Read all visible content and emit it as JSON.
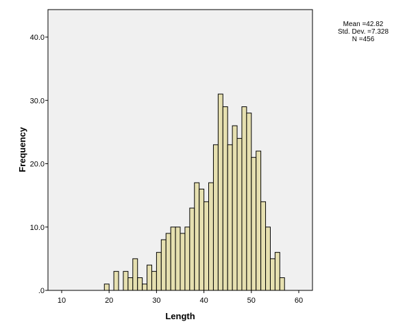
{
  "chart_data": {
    "type": "bar",
    "xlabel": "Length",
    "ylabel": "Frequency",
    "xlim": [
      10,
      60
    ],
    "ylim": [
      0,
      40
    ],
    "x_ticks": [
      10,
      20,
      30,
      40,
      50,
      60
    ],
    "y_ticks": [
      0,
      10,
      20,
      30,
      40
    ],
    "y_tick_labels": [
      ".0",
      "10.0",
      "20.0",
      "30.0",
      "40.0"
    ],
    "bin_width": 1,
    "bin_starts": [
      18,
      19,
      20,
      21,
      22,
      23,
      24,
      25,
      26,
      27,
      28,
      29,
      30,
      31,
      32,
      33,
      34,
      35,
      36,
      37,
      38,
      39,
      40,
      41,
      42,
      43,
      44,
      45,
      46,
      47,
      48,
      49,
      50,
      51,
      52,
      53,
      54,
      55,
      56
    ],
    "values": [
      0,
      1,
      0,
      3,
      0,
      3,
      2,
      5,
      2,
      1,
      4,
      3,
      6,
      8,
      9,
      10,
      10,
      9,
      10,
      13,
      17,
      16,
      14,
      17,
      23,
      31,
      29,
      23,
      26,
      24,
      29,
      28,
      21,
      22,
      14,
      10,
      5,
      6,
      2
    ],
    "grid": false,
    "plot_background": "#f0f0f0",
    "bar_fill": "#e6e0b0",
    "bar_stroke": "#000000"
  },
  "stats": {
    "mean": "Mean =42.82",
    "std_dev": "Std. Dev. =7.328",
    "n": "N =456"
  }
}
